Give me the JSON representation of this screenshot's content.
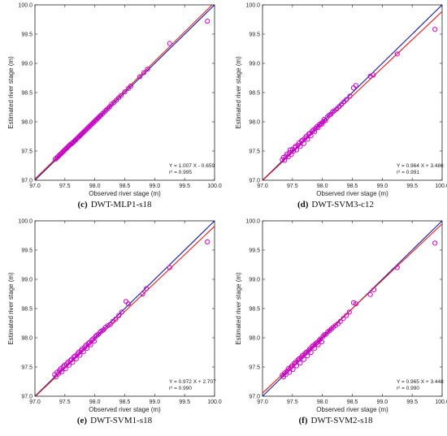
{
  "chart_data": [
    {
      "type": "scatter",
      "panel": "c",
      "caption_letter": "(c)",
      "caption_text": "DWT-MLP1-s18",
      "xlabel": "Observed river stage (m)",
      "ylabel": "Estimated river stage (m)",
      "xlim": [
        97.0,
        100.0
      ],
      "ylim": [
        97.0,
        100.0
      ],
      "xticks": [
        "97.0",
        "97.5",
        "98.0",
        "98.5",
        "99.0",
        "99.5",
        "100.0"
      ],
      "yticks": [
        "97.0",
        "97.5",
        "98.0",
        "98.5",
        "99.0",
        "99.5",
        "100.0"
      ],
      "grid": false,
      "fit": {
        "slope": 1.007,
        "intercept": -0.659
      },
      "equation": "Y = 1.007 X - 0.659",
      "r2_text": "r² = 0.995",
      "series": [
        {
          "kind": "scatter",
          "marker": "open-circle",
          "color": "#cc00cc",
          "x": [
            97.34,
            97.36,
            97.38,
            97.4,
            97.42,
            97.44,
            97.45,
            97.47,
            97.48,
            97.5,
            97.52,
            97.53,
            97.55,
            97.56,
            97.58,
            97.6,
            97.62,
            97.63,
            97.65,
            97.67,
            97.68,
            97.7,
            97.72,
            97.74,
            97.75,
            97.77,
            97.79,
            97.8,
            97.82,
            97.84,
            97.86,
            97.88,
            97.9,
            97.92,
            97.94,
            97.96,
            97.98,
            98.0,
            98.02,
            98.04,
            98.06,
            98.08,
            98.1,
            98.13,
            98.16,
            98.19,
            98.22,
            98.25,
            98.28,
            98.32,
            98.36,
            98.4,
            98.44,
            98.5,
            98.56,
            98.6,
            98.75,
            98.82,
            98.88,
            99.25,
            99.88
          ],
          "y": [
            97.36,
            97.38,
            97.4,
            97.42,
            97.44,
            97.46,
            97.47,
            97.49,
            97.5,
            97.52,
            97.54,
            97.55,
            97.57,
            97.58,
            97.6,
            97.62,
            97.63,
            97.64,
            97.66,
            97.68,
            97.69,
            97.71,
            97.73,
            97.75,
            97.76,
            97.78,
            97.8,
            97.81,
            97.83,
            97.85,
            97.87,
            97.89,
            97.91,
            97.93,
            97.95,
            97.97,
            97.99,
            98.01,
            98.03,
            98.05,
            98.07,
            98.09,
            98.11,
            98.14,
            98.17,
            98.2,
            98.23,
            98.26,
            98.3,
            98.33,
            98.37,
            98.41,
            98.45,
            98.51,
            98.57,
            98.61,
            98.77,
            98.84,
            98.9,
            99.34,
            99.72
          ]
        },
        {
          "kind": "line",
          "role": "1:1 line",
          "color": "#1a1aa0"
        },
        {
          "kind": "line",
          "role": "regression line",
          "color": "#e02020"
        }
      ]
    },
    {
      "type": "scatter",
      "panel": "d",
      "caption_letter": "(d)",
      "caption_text": "DWT-SVM3-c12",
      "xlabel": "Observed river stage (m)",
      "ylabel": "Estimated river stage (m)",
      "xlim": [
        97.0,
        100.0
      ],
      "ylim": [
        97.0,
        100.0
      ],
      "xticks": [
        "97.0",
        "97.5",
        "98.0",
        "98.5",
        "99.0",
        "99.5",
        "100.0"
      ],
      "yticks": [
        "97.0",
        "97.5",
        "98.0",
        "98.5",
        "99.0",
        "99.5",
        "100.0"
      ],
      "grid": false,
      "fit": {
        "slope": 0.964,
        "intercept": 3.486
      },
      "equation": "Y = 0.964 X + 3.486",
      "r2_text": "r² = 0.991",
      "series": [
        {
          "kind": "scatter",
          "marker": "open-circle",
          "color": "#cc00cc",
          "x": [
            97.33,
            97.35,
            97.37,
            97.39,
            97.41,
            97.43,
            97.45,
            97.46,
            97.48,
            97.5,
            97.52,
            97.54,
            97.55,
            97.57,
            97.59,
            97.61,
            97.63,
            97.65,
            97.67,
            97.69,
            97.71,
            97.73,
            97.75,
            97.77,
            97.79,
            97.81,
            97.83,
            97.85,
            97.87,
            97.89,
            97.91,
            97.93,
            97.95,
            97.97,
            97.99,
            98.01,
            98.03,
            98.05,
            98.08,
            98.11,
            98.14,
            98.17,
            98.2,
            98.24,
            98.28,
            98.32,
            98.36,
            98.4,
            98.46,
            98.52,
            98.56,
            98.8,
            98.85,
            99.25,
            99.88
          ],
          "y": [
            97.35,
            97.39,
            97.34,
            97.41,
            97.45,
            97.4,
            97.47,
            97.52,
            97.44,
            97.53,
            97.5,
            97.56,
            97.58,
            97.52,
            97.6,
            97.64,
            97.58,
            97.67,
            97.69,
            97.63,
            97.72,
            97.75,
            97.7,
            97.79,
            97.8,
            97.76,
            97.84,
            97.86,
            97.83,
            97.89,
            97.92,
            97.9,
            97.95,
            97.97,
            97.96,
            98.0,
            98.04,
            98.02,
            98.08,
            98.11,
            98.13,
            98.17,
            98.19,
            98.22,
            98.26,
            98.3,
            98.34,
            98.38,
            98.44,
            98.58,
            98.62,
            98.78,
            98.8,
            99.16,
            99.58
          ]
        },
        {
          "kind": "line",
          "role": "1:1 line",
          "color": "#1a1aa0"
        },
        {
          "kind": "line",
          "role": "regression line",
          "color": "#e02020"
        }
      ]
    },
    {
      "type": "scatter",
      "panel": "e",
      "caption_letter": "(e)",
      "caption_text": "DWT-SVM1-s18",
      "xlabel": "Observed river stage (m)",
      "ylabel": "Estimated river stage (m)",
      "xlim": [
        97.0,
        100.0
      ],
      "ylim": [
        97.0,
        100.0
      ],
      "xticks": [
        "97.0",
        "97.5",
        "98.0",
        "98.5",
        "99.0",
        "99.5",
        "100.0"
      ],
      "yticks": [
        "97.0",
        "97.5",
        "98.0",
        "98.5",
        "99.0",
        "99.5",
        "100.0"
      ],
      "grid": false,
      "fit": {
        "slope": 0.972,
        "intercept": 2.707
      },
      "equation": "Y = 0.972 X + 2.707",
      "r2_text": "r² = 0.990",
      "series": [
        {
          "kind": "scatter",
          "marker": "open-circle",
          "color": "#cc00cc",
          "x": [
            97.33,
            97.35,
            97.37,
            97.39,
            97.41,
            97.43,
            97.45,
            97.47,
            97.49,
            97.51,
            97.53,
            97.55,
            97.57,
            97.59,
            97.61,
            97.63,
            97.65,
            97.67,
            97.69,
            97.71,
            97.73,
            97.75,
            97.77,
            97.79,
            97.81,
            97.83,
            97.85,
            97.87,
            97.89,
            97.91,
            97.93,
            97.95,
            97.97,
            97.99,
            98.01,
            98.03,
            98.06,
            98.09,
            98.12,
            98.15,
            98.18,
            98.22,
            98.26,
            98.3,
            98.35,
            98.4,
            98.45,
            98.52,
            98.56,
            98.8,
            98.86,
            99.25,
            99.88
          ],
          "y": [
            97.37,
            97.33,
            97.41,
            97.38,
            97.44,
            97.47,
            97.42,
            97.5,
            97.53,
            97.47,
            97.55,
            97.58,
            97.53,
            97.61,
            97.63,
            97.58,
            97.67,
            97.69,
            97.64,
            97.72,
            97.75,
            97.7,
            97.78,
            97.81,
            97.76,
            97.84,
            97.87,
            97.82,
            97.9,
            97.92,
            97.88,
            97.96,
            97.98,
            97.94,
            98.02,
            98.04,
            98.06,
            98.1,
            98.12,
            98.14,
            98.18,
            98.21,
            98.23,
            98.28,
            98.32,
            98.38,
            98.44,
            98.62,
            98.58,
            98.75,
            98.84,
            99.2,
            99.64
          ]
        },
        {
          "kind": "line",
          "role": "1:1 line",
          "color": "#1a1aa0"
        },
        {
          "kind": "line",
          "role": "regression line",
          "color": "#e02020"
        }
      ]
    },
    {
      "type": "scatter",
      "panel": "f",
      "caption_letter": "(f)",
      "caption_text": "DWT-SVM2-s18",
      "xlabel": "Observed river stage (m)",
      "ylabel": "Estimated river stage (m)",
      "xlim": [
        97.0,
        100.0
      ],
      "ylim": [
        97.0,
        100.0
      ],
      "xticks": [
        "97.0",
        "97.5",
        "98.0",
        "98.5",
        "99.0",
        "99.5",
        "100.0"
      ],
      "yticks": [
        "97.0",
        "97.5",
        "98.0",
        "98.5",
        "99.0",
        "99.5",
        "100.0"
      ],
      "grid": false,
      "fit": {
        "slope": 0.965,
        "intercept": 3.448
      },
      "equation": "Y = 0.965 X + 3.448",
      "r2_text": "r² = 0.990",
      "series": [
        {
          "kind": "scatter",
          "marker": "open-circle",
          "color": "#cc00cc",
          "x": [
            97.33,
            97.35,
            97.37,
            97.39,
            97.41,
            97.43,
            97.45,
            97.47,
            97.49,
            97.51,
            97.53,
            97.55,
            97.57,
            97.59,
            97.61,
            97.63,
            97.65,
            97.67,
            97.69,
            97.71,
            97.73,
            97.75,
            97.77,
            97.79,
            97.81,
            97.83,
            97.85,
            97.87,
            97.89,
            97.91,
            97.93,
            97.95,
            97.97,
            97.99,
            98.01,
            98.03,
            98.06,
            98.09,
            98.12,
            98.15,
            98.18,
            98.22,
            98.26,
            98.3,
            98.35,
            98.4,
            98.45,
            98.52,
            98.56,
            98.8,
            98.86,
            99.25,
            99.88
          ],
          "y": [
            97.36,
            97.33,
            97.4,
            97.37,
            97.43,
            97.47,
            97.41,
            97.49,
            97.52,
            97.46,
            97.56,
            97.58,
            97.52,
            97.62,
            97.64,
            97.57,
            97.67,
            97.7,
            97.63,
            97.73,
            97.75,
            97.69,
            97.78,
            97.81,
            97.75,
            97.85,
            97.87,
            97.82,
            97.9,
            97.92,
            97.88,
            97.96,
            97.98,
            97.93,
            98.02,
            98.05,
            98.06,
            98.1,
            98.12,
            98.15,
            98.18,
            98.21,
            98.24,
            98.28,
            98.33,
            98.38,
            98.44,
            98.6,
            98.58,
            98.74,
            98.82,
            99.2,
            99.62
          ]
        },
        {
          "kind": "line",
          "role": "1:1 line",
          "color": "#1a1aa0"
        },
        {
          "kind": "line",
          "role": "regression line",
          "color": "#e02020"
        }
      ]
    }
  ]
}
